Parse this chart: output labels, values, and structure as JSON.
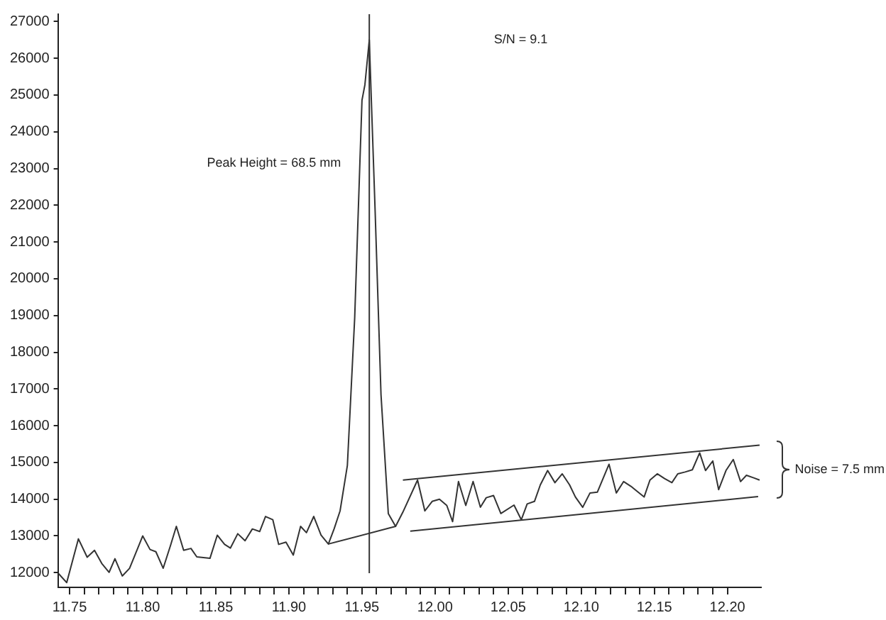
{
  "chart_data": {
    "type": "line",
    "x": [
      11.742,
      11.748,
      11.756,
      11.762,
      11.767,
      11.772,
      11.777,
      11.781,
      11.786,
      11.791,
      11.795,
      11.8,
      11.805,
      11.809,
      11.814,
      11.819,
      11.823,
      11.828,
      11.833,
      11.837,
      11.846,
      11.851,
      11.856,
      11.86,
      11.865,
      11.87,
      11.875,
      11.88,
      11.884,
      11.889,
      11.893,
      11.898,
      11.903,
      11.908,
      11.912,
      11.917,
      11.922,
      11.927,
      11.931,
      11.935,
      11.94,
      11.945,
      11.95,
      11.952,
      11.955,
      11.959,
      11.963,
      11.968,
      11.973,
      11.978,
      11.988,
      11.993,
      11.998,
      12.003,
      12.008,
      12.012,
      12.016,
      12.021,
      12.026,
      12.031,
      12.035,
      12.04,
      12.045,
      12.054,
      12.059,
      12.063,
      12.068,
      12.072,
      12.077,
      12.082,
      12.087,
      12.092,
      12.096,
      12.101,
      12.106,
      12.111,
      12.119,
      12.124,
      12.129,
      12.134,
      12.138,
      12.143,
      12.147,
      12.152,
      12.157,
      12.162,
      12.166,
      12.171,
      12.176,
      12.181,
      12.185,
      12.19,
      12.194,
      12.199,
      12.204,
      12.209,
      12.213,
      12.218,
      12.222
    ],
    "series": [
      {
        "color": "#333333",
        "values": [
          11990,
          11730,
          12920,
          12420,
          12610,
          12250,
          12010,
          12380,
          11910,
          12120,
          12510,
          13000,
          12630,
          12570,
          12120,
          12740,
          13260,
          12610,
          12660,
          12430,
          12390,
          13020,
          12770,
          12670,
          13060,
          12870,
          13190,
          13120,
          13530,
          13440,
          12770,
          12830,
          12480,
          13260,
          13090,
          13530,
          13020,
          12780,
          13200,
          13680,
          14920,
          18930,
          24860,
          25280,
          26500,
          21830,
          16850,
          13610,
          13260,
          13650,
          14520,
          13680,
          13940,
          14000,
          13830,
          13390,
          14480,
          13830,
          14480,
          13780,
          14040,
          14100,
          13610,
          13840,
          13440,
          13870,
          13940,
          14390,
          14780,
          14450,
          14690,
          14390,
          14060,
          13780,
          14170,
          14190,
          14950,
          14170,
          14480,
          14350,
          14220,
          14060,
          14520,
          14690,
          14560,
          14450,
          14690,
          14740,
          14800,
          15260,
          14780,
          15040,
          14260,
          14780,
          15080,
          14480,
          14650,
          14580,
          14520
        ]
      },
      {
        "type": "line",
        "color": "#333333",
        "x": [
          11.978,
          12.222
        ],
        "values": [
          14520,
          15470
        ]
      },
      {
        "type": "line",
        "color": "#333333",
        "x": [
          11.983,
          12.221
        ],
        "values": [
          13130,
          14070
        ]
      },
      {
        "type": "line",
        "color": "#333333",
        "x": [
          11.927,
          11.973
        ],
        "values": [
          12780,
          13260
        ]
      }
    ],
    "xlim": [
      11.742,
      12.223
    ],
    "xticks": [
      11.75,
      {
        "value": 11.76,
        "label": null
      },
      {
        "value": 11.77,
        "label": null
      },
      {
        "value": 11.78,
        "label": null
      },
      {
        "value": 11.79,
        "label": null
      },
      {
        "value": 11.8,
        "label": "11.80"
      },
      {
        "value": 11.81,
        "label": null
      },
      {
        "value": 11.82,
        "label": null
      },
      {
        "value": 11.83,
        "label": null
      },
      {
        "value": 11.84,
        "label": null
      },
      11.85,
      {
        "value": 11.86,
        "label": null
      },
      {
        "value": 11.87,
        "label": null
      },
      {
        "value": 11.88,
        "label": null
      },
      {
        "value": 11.89,
        "label": null
      },
      {
        "value": 11.9,
        "label": "11.90"
      },
      {
        "value": 11.91,
        "label": null
      },
      {
        "value": 11.92,
        "label": null
      },
      {
        "value": 11.93,
        "label": null
      },
      {
        "value": 11.94,
        "label": null
      },
      11.95,
      {
        "value": 11.96,
        "label": null
      },
      {
        "value": 11.97,
        "label": null
      },
      {
        "value": 11.98,
        "label": null
      },
      {
        "value": 11.99,
        "label": null
      },
      {
        "value": 12,
        "label": "12.00"
      },
      {
        "value": 12.01,
        "label": null
      },
      {
        "value": 12.02,
        "label": null
      },
      {
        "value": 12.03,
        "label": null
      },
      {
        "value": 12.04,
        "label": null
      },
      12.05,
      {
        "value": 12.06,
        "label": null
      },
      {
        "value": 12.07,
        "label": null
      },
      {
        "value": 12.08,
        "label": null
      },
      {
        "value": 12.09,
        "label": null
      },
      {
        "value": 12.1,
        "label": "12.10"
      },
      {
        "value": 12.11,
        "label": null
      },
      {
        "value": 12.12,
        "label": null
      },
      {
        "value": 12.13,
        "label": null
      },
      {
        "value": 12.14,
        "label": null
      },
      12.15,
      {
        "value": 12.16,
        "label": null
      },
      {
        "value": 12.17,
        "label": null
      },
      {
        "value": 12.18,
        "label": null
      },
      {
        "value": 12.19,
        "label": null
      },
      {
        "value": 12.2,
        "label": "12.20"
      }
    ],
    "ylim": [
      11600,
      27200
    ],
    "yticks": [
      12000,
      13000,
      14000,
      15000,
      16000,
      17000,
      18000,
      19000,
      20000,
      21000,
      22000,
      23000,
      24000,
      25000,
      26000,
      27000
    ],
    "ref_lines": [
      {
        "axis": "x",
        "value": 11.955,
        "color": "#333333"
      }
    ],
    "annotations": [
      "Peak Height = 68.5 mm",
      "S/N = 9.1",
      "Noise = 7.5 mm"
    ],
    "grid": false,
    "legend": false,
    "marker": "none",
    "line_style": "solid"
  }
}
